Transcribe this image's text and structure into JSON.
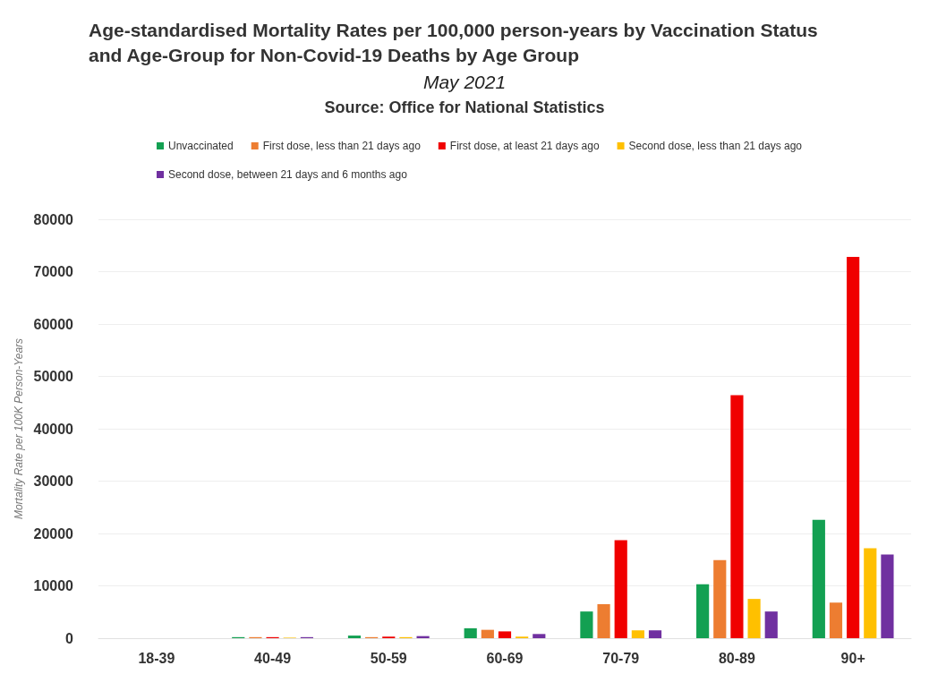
{
  "chart_data": {
    "type": "bar",
    "title": "Age-standardised Mortality Rates per 100,000 person-years by Vaccination Status and Age-Group for Non-Covid-19 Deaths by Age Group",
    "subtitle": "May 2021",
    "annotations": [
      "Source: Office for National Statistics"
    ],
    "ylabel": "Mortality Rate per 100K Person-Years",
    "categories": [
      "18-39",
      "40-49",
      "50-59",
      "60-69",
      "70-79",
      "80-89",
      "90+"
    ],
    "series": [
      {
        "name": "Unvaccinated",
        "color": "#13a052",
        "values": [
          0,
          200,
          500,
          1900,
          5100,
          10300,
          22600
        ]
      },
      {
        "name": "First dose, less than 21 days ago",
        "color": "#ed7d31",
        "values": [
          0,
          200,
          200,
          1600,
          6500,
          14900,
          6800
        ]
      },
      {
        "name": "First dose, at least 21 days ago",
        "color": "#f00000",
        "values": [
          0,
          200,
          300,
          1300,
          18700,
          46400,
          72800
        ]
      },
      {
        "name": "Second dose, less than 21 days ago",
        "color": "#ffc000",
        "values": [
          0,
          100,
          200,
          300,
          1500,
          7500,
          17200
        ]
      },
      {
        "name": "Second dose, between 21 days and 6 months ago",
        "color": "#7030a0",
        "values": [
          0,
          200,
          400,
          800,
          1500,
          5100,
          16000
        ]
      }
    ],
    "ylim": [
      0,
      80000
    ],
    "yticks": [
      0,
      10000,
      20000,
      30000,
      40000,
      50000,
      60000,
      70000,
      80000
    ],
    "grid": "y",
    "legend": "top"
  }
}
